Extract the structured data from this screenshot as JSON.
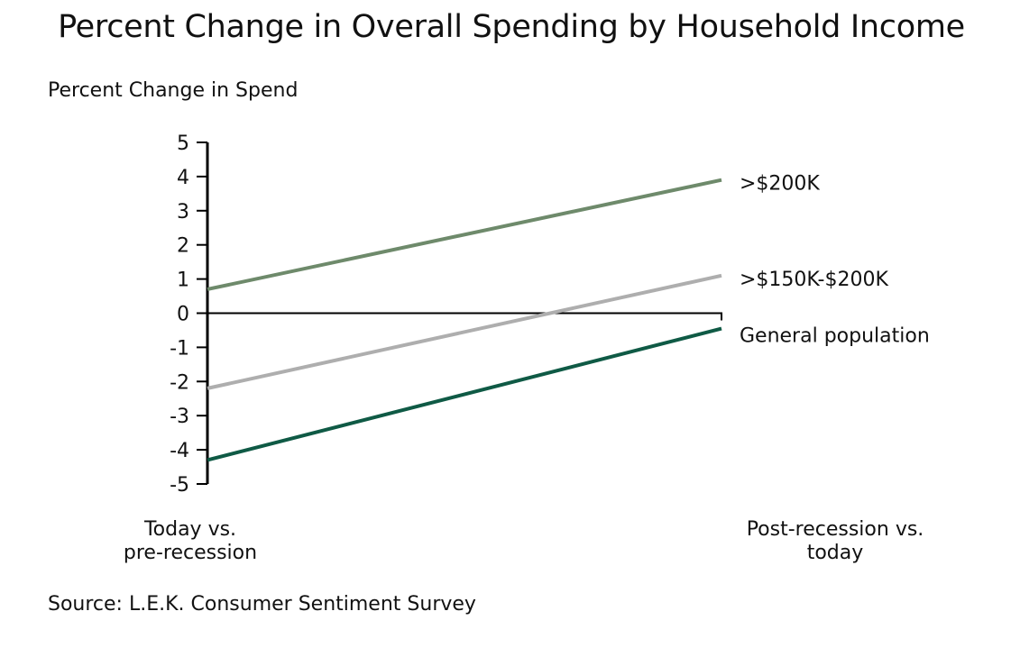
{
  "chart_data": {
    "type": "line",
    "title": "Percent Change in Overall Spending by Household Income",
    "ylabel": "Percent Change in Spend",
    "xlabel": "",
    "categories": [
      [
        "Today vs.",
        "pre-recession"
      ],
      [
        "Post-recession vs.",
        "today"
      ]
    ],
    "ylim": [
      -5,
      5
    ],
    "yticks": [
      "5",
      "4",
      "3",
      "2",
      "1",
      "0",
      "-1",
      "-2",
      "-3",
      "-4",
      "-5"
    ],
    "grid": false,
    "legend": "direct labels at right end of each line",
    "series": [
      {
        "name": ">$200K",
        "values": [
          0.7,
          3.9
        ],
        "color": "#6e8a6b"
      },
      {
        "name": ">$150K-$200K",
        "values": [
          -2.2,
          1.1
        ],
        "color": "#aeaeae"
      },
      {
        "name": "General population",
        "values": [
          -4.3,
          -0.45
        ],
        "color": "#0f5a45"
      }
    ],
    "source": "Source: L.E.K. Consumer Sentiment Survey"
  }
}
